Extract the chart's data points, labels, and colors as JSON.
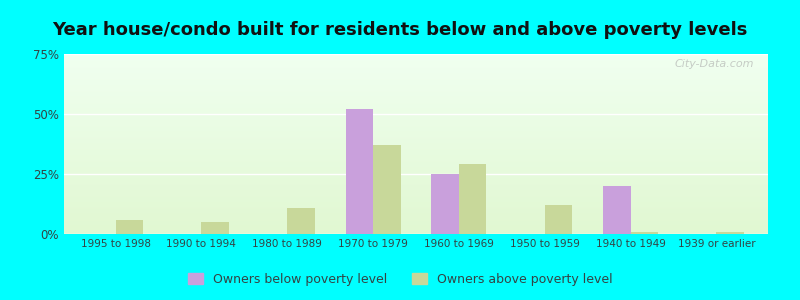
{
  "title": "Year house/condo built for residents below and above poverty levels",
  "categories": [
    "1995 to 1998",
    "1990 to 1994",
    "1980 to 1989",
    "1970 to 1979",
    "1960 to 1969",
    "1950 to 1959",
    "1940 to 1949",
    "1939 or earlier"
  ],
  "below_poverty": [
    0.0,
    0.0,
    0.0,
    52.0,
    25.0,
    0.0,
    20.0,
    0.0
  ],
  "above_poverty": [
    6.0,
    5.0,
    11.0,
    37.0,
    29.0,
    12.0,
    1.0,
    1.0
  ],
  "below_color": "#c9a0dc",
  "above_color": "#c8d89a",
  "below_label": "Owners below poverty level",
  "above_label": "Owners above poverty level",
  "ylim": [
    0,
    75
  ],
  "yticks": [
    0,
    25,
    50,
    75
  ],
  "ytick_labels": [
    "0%",
    "25%",
    "50%",
    "75%"
  ],
  "outer_color": "#00ffff",
  "title_fontsize": 13,
  "bar_width": 0.32,
  "watermark": "City-Data.com"
}
